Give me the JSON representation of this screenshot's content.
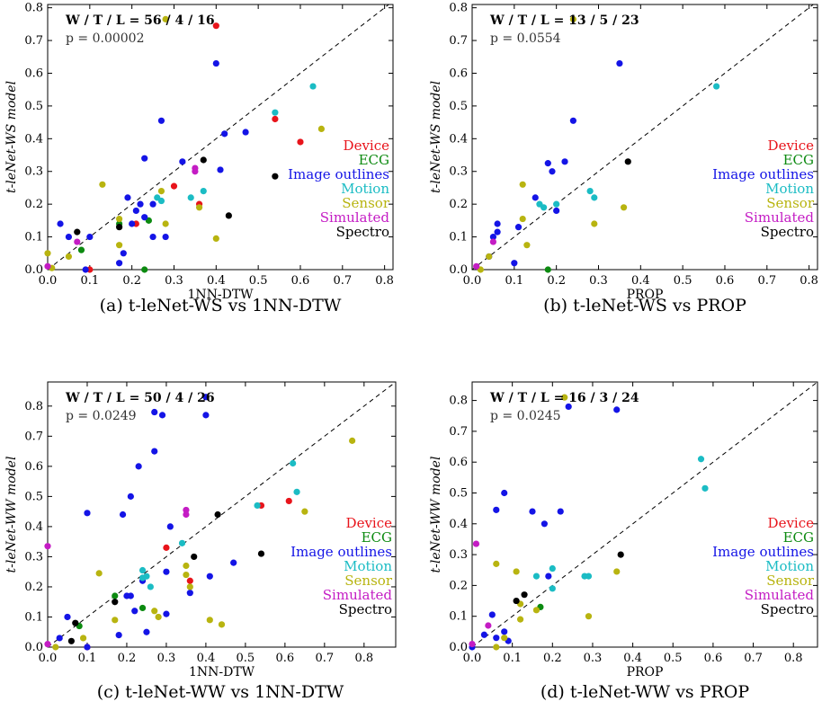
{
  "chart_data": [
    {
      "type": "scatter",
      "stat": "W / T / L = 56 / 4 / 16",
      "pvalue": "p = 0.00002",
      "xlabel": "1NN-DTW",
      "ylabel": "t-leNet-WS model",
      "caption": "(a) t-leNet-WS vs 1NN-DTW",
      "xlim": [
        0,
        0.82
      ],
      "ylim": [
        0,
        0.81
      ],
      "xticks": [
        "0.0",
        "0.1",
        "0.2",
        "0.3",
        "0.4",
        "0.5",
        "0.6",
        "0.7",
        "0.8"
      ],
      "yticks": [
        "0.0",
        "0.1",
        "0.2",
        "0.3",
        "0.4",
        "0.5",
        "0.6",
        "0.7",
        "0.8"
      ],
      "legend": [
        "Device",
        "ECG",
        "Image outlines",
        "Motion",
        "Sensor",
        "Simulated",
        "Spectro"
      ],
      "points": [
        [
          0.4,
          0.745,
          "Device"
        ],
        [
          0.54,
          0.46,
          "Device"
        ],
        [
          0.6,
          0.39,
          "Device"
        ],
        [
          0.3,
          0.255,
          "Device"
        ],
        [
          0.36,
          0.2,
          "Device"
        ],
        [
          0.21,
          0.14,
          "Device"
        ],
        [
          0.1,
          0.0,
          "Device"
        ],
        [
          0.08,
          0.06,
          "ECG"
        ],
        [
          0.23,
          0.0,
          "ECG"
        ],
        [
          0.24,
          0.15,
          "ECG"
        ],
        [
          0.17,
          0.14,
          "ECG"
        ],
        [
          0.4,
          0.63,
          "Image outlines"
        ],
        [
          0.27,
          0.455,
          "Image outlines"
        ],
        [
          0.42,
          0.415,
          "Image outlines"
        ],
        [
          0.47,
          0.42,
          "Image outlines"
        ],
        [
          0.23,
          0.34,
          "Image outlines"
        ],
        [
          0.32,
          0.33,
          "Image outlines"
        ],
        [
          0.41,
          0.305,
          "Image outlines"
        ],
        [
          0.22,
          0.2,
          "Image outlines"
        ],
        [
          0.21,
          0.18,
          "Image outlines"
        ],
        [
          0.19,
          0.22,
          "Image outlines"
        ],
        [
          0.25,
          0.2,
          "Image outlines"
        ],
        [
          0.23,
          0.16,
          "Image outlines"
        ],
        [
          0.2,
          0.14,
          "Image outlines"
        ],
        [
          0.25,
          0.1,
          "Image outlines"
        ],
        [
          0.28,
          0.1,
          "Image outlines"
        ],
        [
          0.18,
          0.05,
          "Image outlines"
        ],
        [
          0.17,
          0.02,
          "Image outlines"
        ],
        [
          0.1,
          0.1,
          "Image outlines"
        ],
        [
          0.03,
          0.14,
          "Image outlines"
        ],
        [
          0.05,
          0.1,
          "Image outlines"
        ],
        [
          0.09,
          0.0,
          "Image outlines"
        ],
        [
          0.63,
          0.56,
          "Motion"
        ],
        [
          0.54,
          0.48,
          "Motion"
        ],
        [
          0.34,
          0.22,
          "Motion"
        ],
        [
          0.37,
          0.24,
          "Motion"
        ],
        [
          0.26,
          0.22,
          "Motion"
        ],
        [
          0.27,
          0.21,
          "Motion"
        ],
        [
          0.28,
          0.765,
          "Sensor"
        ],
        [
          0.65,
          0.43,
          "Sensor"
        ],
        [
          0.13,
          0.26,
          "Sensor"
        ],
        [
          0.27,
          0.24,
          "Sensor"
        ],
        [
          0.36,
          0.19,
          "Sensor"
        ],
        [
          0.17,
          0.155,
          "Sensor"
        ],
        [
          0.17,
          0.075,
          "Sensor"
        ],
        [
          0.05,
          0.04,
          "Sensor"
        ],
        [
          0.4,
          0.095,
          "Sensor"
        ],
        [
          0.28,
          0.14,
          "Sensor"
        ],
        [
          0.0,
          0.05,
          "Sensor"
        ],
        [
          0.01,
          0.005,
          "Sensor"
        ],
        [
          0.35,
          0.3,
          "Simulated"
        ],
        [
          0.07,
          0.085,
          "Simulated"
        ],
        [
          0.35,
          0.31,
          "Simulated"
        ],
        [
          0.0,
          0.01,
          "Simulated"
        ],
        [
          0.37,
          0.335,
          "Spectro"
        ],
        [
          0.54,
          0.285,
          "Spectro"
        ],
        [
          0.43,
          0.165,
          "Spectro"
        ],
        [
          0.07,
          0.115,
          "Spectro"
        ],
        [
          0.17,
          0.13,
          "Spectro"
        ]
      ]
    },
    {
      "type": "scatter",
      "stat": "W / T / L = 13 / 5 / 23",
      "pvalue": "p = 0.0554",
      "xlabel": "PROP",
      "ylabel": "t-leNet-WS model",
      "caption": "(b) t-leNet-WS vs PROP",
      "xlim": [
        0,
        0.82
      ],
      "ylim": [
        0,
        0.81
      ],
      "xticks": [
        "0.0",
        "0.1",
        "0.2",
        "0.3",
        "0.4",
        "0.5",
        "0.6",
        "0.7",
        "0.8"
      ],
      "yticks": [
        "0.0",
        "0.1",
        "0.2",
        "0.3",
        "0.4",
        "0.5",
        "0.6",
        "0.7",
        "0.8"
      ],
      "legend": [
        "Device",
        "ECG",
        "Image outlines",
        "Motion",
        "Sensor",
        "Simulated",
        "Spectro"
      ],
      "points": [
        [
          0.18,
          0.0,
          "ECG"
        ],
        [
          0.35,
          0.63,
          "Image outlines"
        ],
        [
          0.24,
          0.455,
          "Image outlines"
        ],
        [
          0.22,
          0.33,
          "Image outlines"
        ],
        [
          0.18,
          0.325,
          "Image outlines"
        ],
        [
          0.19,
          0.3,
          "Image outlines"
        ],
        [
          0.15,
          0.22,
          "Image outlines"
        ],
        [
          0.2,
          0.18,
          "Image outlines"
        ],
        [
          0.11,
          0.13,
          "Image outlines"
        ],
        [
          0.05,
          0.1,
          "Image outlines"
        ],
        [
          0.04,
          0.04,
          "Image outlines"
        ],
        [
          0.06,
          0.14,
          "Image outlines"
        ],
        [
          0.1,
          0.02,
          "Image outlines"
        ],
        [
          0.06,
          0.115,
          "Image outlines"
        ],
        [
          0.58,
          0.56,
          "Motion"
        ],
        [
          0.28,
          0.24,
          "Motion"
        ],
        [
          0.29,
          0.22,
          "Motion"
        ],
        [
          0.2,
          0.2,
          "Motion"
        ],
        [
          0.16,
          0.2,
          "Motion"
        ],
        [
          0.17,
          0.19,
          "Motion"
        ],
        [
          0.24,
          0.765,
          "Sensor"
        ],
        [
          0.12,
          0.26,
          "Sensor"
        ],
        [
          0.36,
          0.19,
          "Sensor"
        ],
        [
          0.29,
          0.14,
          "Sensor"
        ],
        [
          0.12,
          0.155,
          "Sensor"
        ],
        [
          0.13,
          0.075,
          "Sensor"
        ],
        [
          0.04,
          0.04,
          "Sensor"
        ],
        [
          0.02,
          0.0,
          "Sensor"
        ],
        [
          0.05,
          0.085,
          "Simulated"
        ],
        [
          0.01,
          0.01,
          "Simulated"
        ],
        [
          0.37,
          0.33,
          "Spectro"
        ]
      ]
    },
    {
      "type": "scatter",
      "stat": "W / T / L = 50 / 4 / 26",
      "pvalue": "p = 0.0249",
      "xlabel": "1NN-DTW",
      "ylabel": "t-leNet-WW model",
      "caption": "(c) t-leNet-WW vs 1NN-DTW",
      "xlim": [
        0,
        0.88
      ],
      "ylim": [
        0,
        0.88
      ],
      "xticks": [
        "0.0",
        "0.1",
        "0.2",
        "0.3",
        "0.4",
        "0.5",
        "0.6",
        "0.7",
        "0.8"
      ],
      "yticks": [
        "0.0",
        "0.1",
        "0.2",
        "0.3",
        "0.4",
        "0.5",
        "0.6",
        "0.7",
        "0.8"
      ],
      "legend": [
        "Device",
        "ECG",
        "Image outlines",
        "Motion",
        "Sensor",
        "Simulated",
        "Spectro"
      ],
      "points": [
        [
          0.61,
          0.485,
          "Device"
        ],
        [
          0.54,
          0.47,
          "Device"
        ],
        [
          0.3,
          0.33,
          "Device"
        ],
        [
          0.36,
          0.22,
          "Device"
        ],
        [
          0.1,
          0.0,
          "Device"
        ],
        [
          0.24,
          0.13,
          "ECG"
        ],
        [
          0.17,
          0.17,
          "ECG"
        ],
        [
          0.08,
          0.07,
          "ECG"
        ],
        [
          0.4,
          0.83,
          "Image outlines"
        ],
        [
          0.27,
          0.78,
          "Image outlines"
        ],
        [
          0.29,
          0.77,
          "Image outlines"
        ],
        [
          0.4,
          0.77,
          "Image outlines"
        ],
        [
          0.27,
          0.65,
          "Image outlines"
        ],
        [
          0.23,
          0.6,
          "Image outlines"
        ],
        [
          0.21,
          0.5,
          "Image outlines"
        ],
        [
          0.1,
          0.445,
          "Image outlines"
        ],
        [
          0.19,
          0.44,
          "Image outlines"
        ],
        [
          0.31,
          0.4,
          "Image outlines"
        ],
        [
          0.47,
          0.28,
          "Image outlines"
        ],
        [
          0.36,
          0.18,
          "Image outlines"
        ],
        [
          0.3,
          0.25,
          "Image outlines"
        ],
        [
          0.41,
          0.235,
          "Image outlines"
        ],
        [
          0.24,
          0.22,
          "Image outlines"
        ],
        [
          0.21,
          0.17,
          "Image outlines"
        ],
        [
          0.2,
          0.17,
          "Image outlines"
        ],
        [
          0.22,
          0.12,
          "Image outlines"
        ],
        [
          0.3,
          0.11,
          "Image outlines"
        ],
        [
          0.25,
          0.05,
          "Image outlines"
        ],
        [
          0.18,
          0.04,
          "Image outlines"
        ],
        [
          0.05,
          0.1,
          "Image outlines"
        ],
        [
          0.03,
          0.03,
          "Image outlines"
        ],
        [
          0.1,
          0.0,
          "Image outlines"
        ],
        [
          0.62,
          0.61,
          "Motion"
        ],
        [
          0.63,
          0.515,
          "Motion"
        ],
        [
          0.53,
          0.47,
          "Motion"
        ],
        [
          0.34,
          0.345,
          "Motion"
        ],
        [
          0.24,
          0.255,
          "Motion"
        ],
        [
          0.26,
          0.2,
          "Motion"
        ],
        [
          0.25,
          0.235,
          "Motion"
        ],
        [
          0.24,
          0.23,
          "Motion"
        ],
        [
          0.77,
          0.685,
          "Sensor"
        ],
        [
          0.65,
          0.45,
          "Sensor"
        ],
        [
          0.13,
          0.245,
          "Sensor"
        ],
        [
          0.35,
          0.27,
          "Sensor"
        ],
        [
          0.35,
          0.24,
          "Sensor"
        ],
        [
          0.36,
          0.2,
          "Sensor"
        ],
        [
          0.17,
          0.09,
          "Sensor"
        ],
        [
          0.27,
          0.12,
          "Sensor"
        ],
        [
          0.28,
          0.1,
          "Sensor"
        ],
        [
          0.41,
          0.09,
          "Sensor"
        ],
        [
          0.44,
          0.075,
          "Sensor"
        ],
        [
          0.09,
          0.03,
          "Sensor"
        ],
        [
          0.02,
          0.0,
          "Sensor"
        ],
        [
          0.35,
          0.455,
          "Simulated"
        ],
        [
          0.35,
          0.44,
          "Simulated"
        ],
        [
          0.0,
          0.335,
          "Simulated"
        ],
        [
          0.0,
          0.01,
          "Simulated"
        ],
        [
          0.43,
          0.44,
          "Spectro"
        ],
        [
          0.37,
          0.3,
          "Spectro"
        ],
        [
          0.54,
          0.31,
          "Spectro"
        ],
        [
          0.17,
          0.15,
          "Spectro"
        ],
        [
          0.07,
          0.08,
          "Spectro"
        ],
        [
          0.06,
          0.02,
          "Spectro"
        ]
      ]
    },
    {
      "type": "scatter",
      "stat": "W / T / L = 16 / 3 / 24",
      "pvalue": "p = 0.0245",
      "xlabel": "PROP",
      "ylabel": "t-leNet-WW model",
      "caption": "(d) t-leNet-WW vs PROP",
      "xlim": [
        0,
        0.86
      ],
      "ylim": [
        0,
        0.86
      ],
      "xticks": [
        "0.0",
        "0.1",
        "0.2",
        "0.3",
        "0.4",
        "0.5",
        "0.6",
        "0.7",
        "0.8"
      ],
      "yticks": [
        "0.0",
        "0.1",
        "0.2",
        "0.3",
        "0.4",
        "0.5",
        "0.6",
        "0.7",
        "0.8"
      ],
      "legend": [
        "Device",
        "ECG",
        "Image outlines",
        "Motion",
        "Sensor",
        "Simulated",
        "Spectro"
      ],
      "points": [
        [
          0.17,
          0.13,
          "ECG"
        ],
        [
          0.24,
          0.78,
          "Image outlines"
        ],
        [
          0.36,
          0.77,
          "Image outlines"
        ],
        [
          0.08,
          0.5,
          "Image outlines"
        ],
        [
          0.06,
          0.445,
          "Image outlines"
        ],
        [
          0.15,
          0.44,
          "Image outlines"
        ],
        [
          0.22,
          0.44,
          "Image outlines"
        ],
        [
          0.18,
          0.4,
          "Image outlines"
        ],
        [
          0.19,
          0.23,
          "Image outlines"
        ],
        [
          0.08,
          0.05,
          "Image outlines"
        ],
        [
          0.09,
          0.02,
          "Image outlines"
        ],
        [
          0.06,
          0.03,
          "Image outlines"
        ],
        [
          0.05,
          0.105,
          "Image outlines"
        ],
        [
          0.03,
          0.04,
          "Image outlines"
        ],
        [
          0.0,
          0.0,
          "Image outlines"
        ],
        [
          0.57,
          0.61,
          "Motion"
        ],
        [
          0.58,
          0.515,
          "Motion"
        ],
        [
          0.28,
          0.23,
          "Motion"
        ],
        [
          0.29,
          0.23,
          "Motion"
        ],
        [
          0.2,
          0.255,
          "Motion"
        ],
        [
          0.16,
          0.23,
          "Motion"
        ],
        [
          0.2,
          0.19,
          "Motion"
        ],
        [
          0.23,
          0.81,
          "Sensor"
        ],
        [
          0.06,
          0.27,
          "Sensor"
        ],
        [
          0.11,
          0.245,
          "Sensor"
        ],
        [
          0.36,
          0.245,
          "Sensor"
        ],
        [
          0.12,
          0.14,
          "Sensor"
        ],
        [
          0.12,
          0.09,
          "Sensor"
        ],
        [
          0.16,
          0.12,
          "Sensor"
        ],
        [
          0.29,
          0.1,
          "Sensor"
        ],
        [
          0.08,
          0.03,
          "Sensor"
        ],
        [
          0.06,
          0.0,
          "Sensor"
        ],
        [
          0.01,
          0.335,
          "Simulated"
        ],
        [
          0.04,
          0.07,
          "Simulated"
        ],
        [
          0.0,
          0.01,
          "Simulated"
        ],
        [
          0.37,
          0.3,
          "Spectro"
        ],
        [
          0.13,
          0.17,
          "Spectro"
        ],
        [
          0.11,
          0.15,
          "Spectro"
        ]
      ]
    }
  ],
  "colors": {
    "Device": "#e8141b",
    "ECG": "#0c8a10",
    "Image outlines": "#1414e6",
    "Motion": "#1bbcc4",
    "Sensor": "#b8b410",
    "Simulated": "#c41cc4",
    "Spectro": "#000000"
  }
}
